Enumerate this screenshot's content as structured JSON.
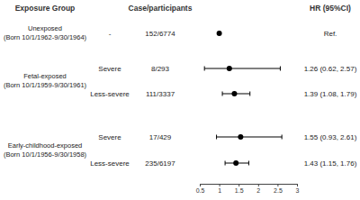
{
  "chart_data": {
    "type": "forest",
    "column_headers": [
      "Exposure Group",
      "Case/participants",
      "HR (95%CI)"
    ],
    "groups": [
      {
        "name": "Unexposed",
        "period": "(Born 10/1/1962-9/30/1964)",
        "rows": [
          {
            "subgroup": "-",
            "cases": "152/6774",
            "value": 1,
            "ci_low": null,
            "ci_high": null,
            "hr_label": "Ref."
          }
        ]
      },
      {
        "name": "Fetal-exposed",
        "period": "(Born 10/1/1959-9/30/1961)",
        "rows": [
          {
            "subgroup": "Severe",
            "cases": "8/293",
            "value": 1.26,
            "ci_low": 0.62,
            "ci_high": 2.57,
            "hr_label": "1.26 (0.62, 2.57)"
          },
          {
            "subgroup": "Less-severe",
            "cases": "111/3337",
            "value": 1.39,
            "ci_low": 1.08,
            "ci_high": 1.79,
            "hr_label": "1.39 (1.08, 1.79)"
          }
        ]
      },
      {
        "name": "Early-childhood-exposed",
        "period": "(Born 10/1/1956-9/30/1958)",
        "rows": [
          {
            "subgroup": "Severe",
            "cases": "17/429",
            "value": 1.55,
            "ci_low": 0.93,
            "ci_high": 2.61,
            "hr_label": "1.55 (0.93, 2.61)"
          },
          {
            "subgroup": "Less-severe",
            "cases": "235/6197",
            "value": 1.43,
            "ci_low": 1.15,
            "ci_high": 1.76,
            "hr_label": "1.43 (1.15, 1.76)"
          }
        ]
      }
    ],
    "xlim": [
      0.5,
      3
    ],
    "xticks": [
      0.5,
      1,
      1.5,
      2,
      2.5,
      3
    ],
    "color": "#000000"
  }
}
